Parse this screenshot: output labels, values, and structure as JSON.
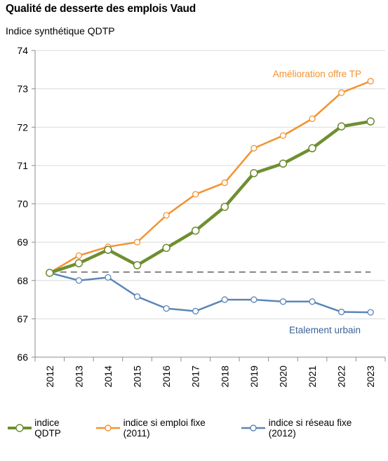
{
  "header": {
    "title": "Qualité de desserte des emplois Vaud",
    "subtitle": "Indice synthétique QDTP"
  },
  "chart_data": {
    "type": "line",
    "title": "Qualité de desserte des emplois Vaud",
    "ylabel": "Indice synthétique QDTP",
    "xlabel": "",
    "x": [
      "2012",
      "2013",
      "2014",
      "2015",
      "2016",
      "2017",
      "2018",
      "2019",
      "2020",
      "2021",
      "2022",
      "2023"
    ],
    "ylim": [
      66,
      74
    ],
    "yticks": [
      66,
      67,
      68,
      69,
      70,
      71,
      72,
      73,
      74
    ],
    "grid": "horizontal",
    "reference_line": {
      "value": 68.22,
      "style": "dashed",
      "color": "#404040"
    },
    "series": [
      {
        "name": "indice QDTP",
        "color": "#6f8f31",
        "marker_fill": "#ffffff",
        "values": [
          68.2,
          68.45,
          68.8,
          68.4,
          68.85,
          69.3,
          69.92,
          70.8,
          71.05,
          71.45,
          72.02,
          72.15
        ]
      },
      {
        "name": "indice si emploi fixe (2011)",
        "color": "#f39230",
        "marker_fill": "#ffffff",
        "values": [
          68.2,
          68.65,
          68.88,
          69.0,
          69.7,
          70.25,
          70.55,
          71.45,
          71.78,
          72.22,
          72.9,
          73.2
        ]
      },
      {
        "name": "indice si réseau fixe (2012)",
        "color": "#5b86b8",
        "marker_fill": "#ffffff",
        "values": [
          68.2,
          68.0,
          68.08,
          67.58,
          67.27,
          67.2,
          67.5,
          67.5,
          67.45,
          67.45,
          67.18,
          67.17
        ]
      }
    ],
    "annotations": [
      {
        "text": "Amélioration offre TP",
        "color": "#f39230"
      },
      {
        "text": "Etalement urbain",
        "color": "#3d6394"
      }
    ],
    "legend_position": "bottom"
  }
}
